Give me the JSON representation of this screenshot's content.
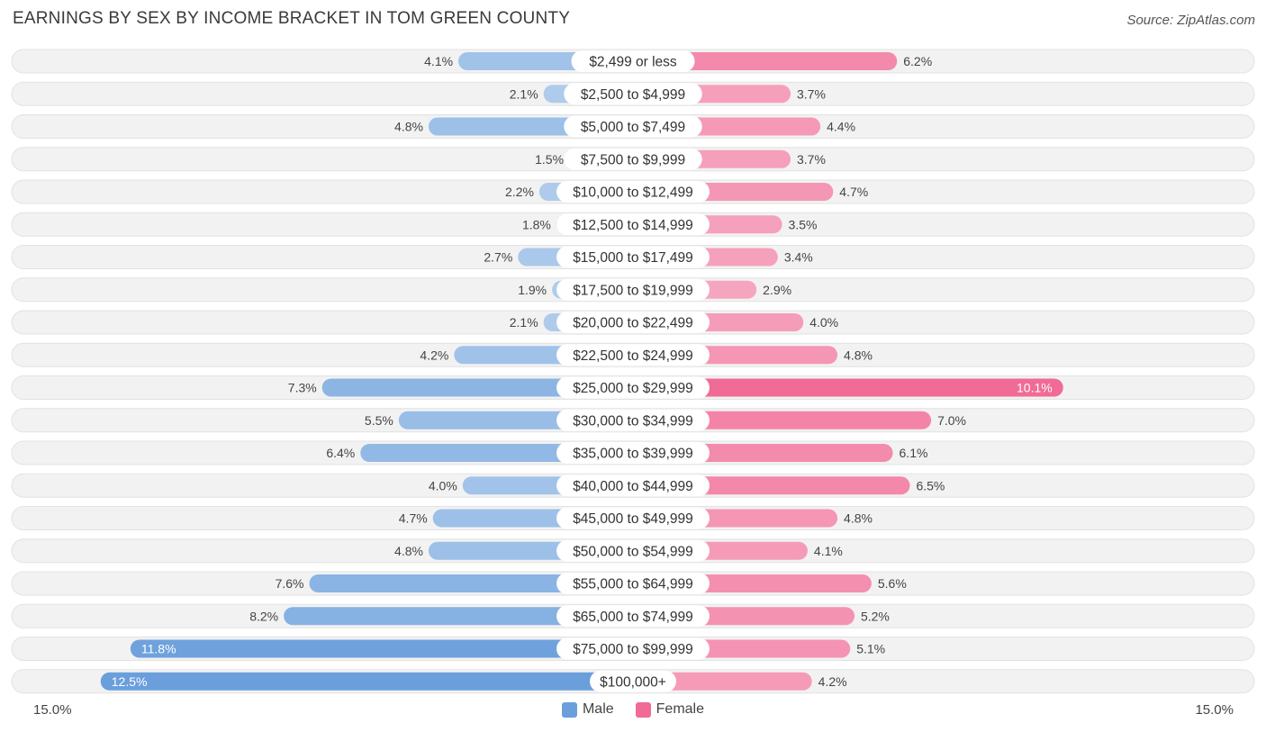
{
  "chart_data": {
    "type": "bar",
    "orientation": "horizontal-diverging",
    "title": "EARNINGS BY SEX BY INCOME BRACKET IN TOM GREEN COUNTY",
    "source": "Source: ZipAtlas.com",
    "categories": [
      "$2,499 or less",
      "$2,500 to $4,999",
      "$5,000 to $7,499",
      "$7,500 to $9,999",
      "$10,000 to $12,499",
      "$12,500 to $14,999",
      "$15,000 to $17,499",
      "$17,500 to $19,999",
      "$20,000 to $22,499",
      "$22,500 to $24,999",
      "$25,000 to $29,999",
      "$30,000 to $34,999",
      "$35,000 to $39,999",
      "$40,000 to $44,999",
      "$45,000 to $49,999",
      "$50,000 to $54,999",
      "$55,000 to $64,999",
      "$65,000 to $74,999",
      "$75,000 to $99,999",
      "$100,000+"
    ],
    "series": [
      {
        "name": "Male",
        "color": "#6a9fdc",
        "values": [
          4.1,
          2.1,
          4.8,
          1.5,
          2.2,
          1.8,
          2.7,
          1.9,
          2.1,
          4.2,
          7.3,
          5.5,
          6.4,
          4.0,
          4.7,
          4.8,
          7.6,
          8.2,
          11.8,
          12.5
        ],
        "labels": [
          "4.1%",
          "2.1%",
          "4.8%",
          "1.5%",
          "2.2%",
          "1.8%",
          "2.7%",
          "1.9%",
          "2.1%",
          "4.2%",
          "7.3%",
          "5.5%",
          "6.4%",
          "4.0%",
          "4.7%",
          "4.8%",
          "7.6%",
          "8.2%",
          "11.8%",
          "12.5%"
        ]
      },
      {
        "name": "Female",
        "color": "#f06b96",
        "values": [
          6.2,
          3.7,
          4.4,
          3.7,
          4.7,
          3.5,
          3.4,
          2.9,
          4.0,
          4.8,
          10.1,
          7.0,
          6.1,
          6.5,
          4.8,
          4.1,
          5.6,
          5.2,
          5.1,
          4.2
        ],
        "labels": [
          "6.2%",
          "3.7%",
          "4.4%",
          "3.7%",
          "4.7%",
          "3.5%",
          "3.4%",
          "2.9%",
          "4.0%",
          "4.8%",
          "10.1%",
          "7.0%",
          "6.1%",
          "6.5%",
          "4.8%",
          "4.1%",
          "5.6%",
          "5.2%",
          "5.1%",
          "4.2%"
        ]
      }
    ],
    "xlim": [
      -15.0,
      15.0
    ],
    "axis_min_label": "15.0%",
    "axis_max_label": "15.0%",
    "legend_position": "bottom-center"
  }
}
